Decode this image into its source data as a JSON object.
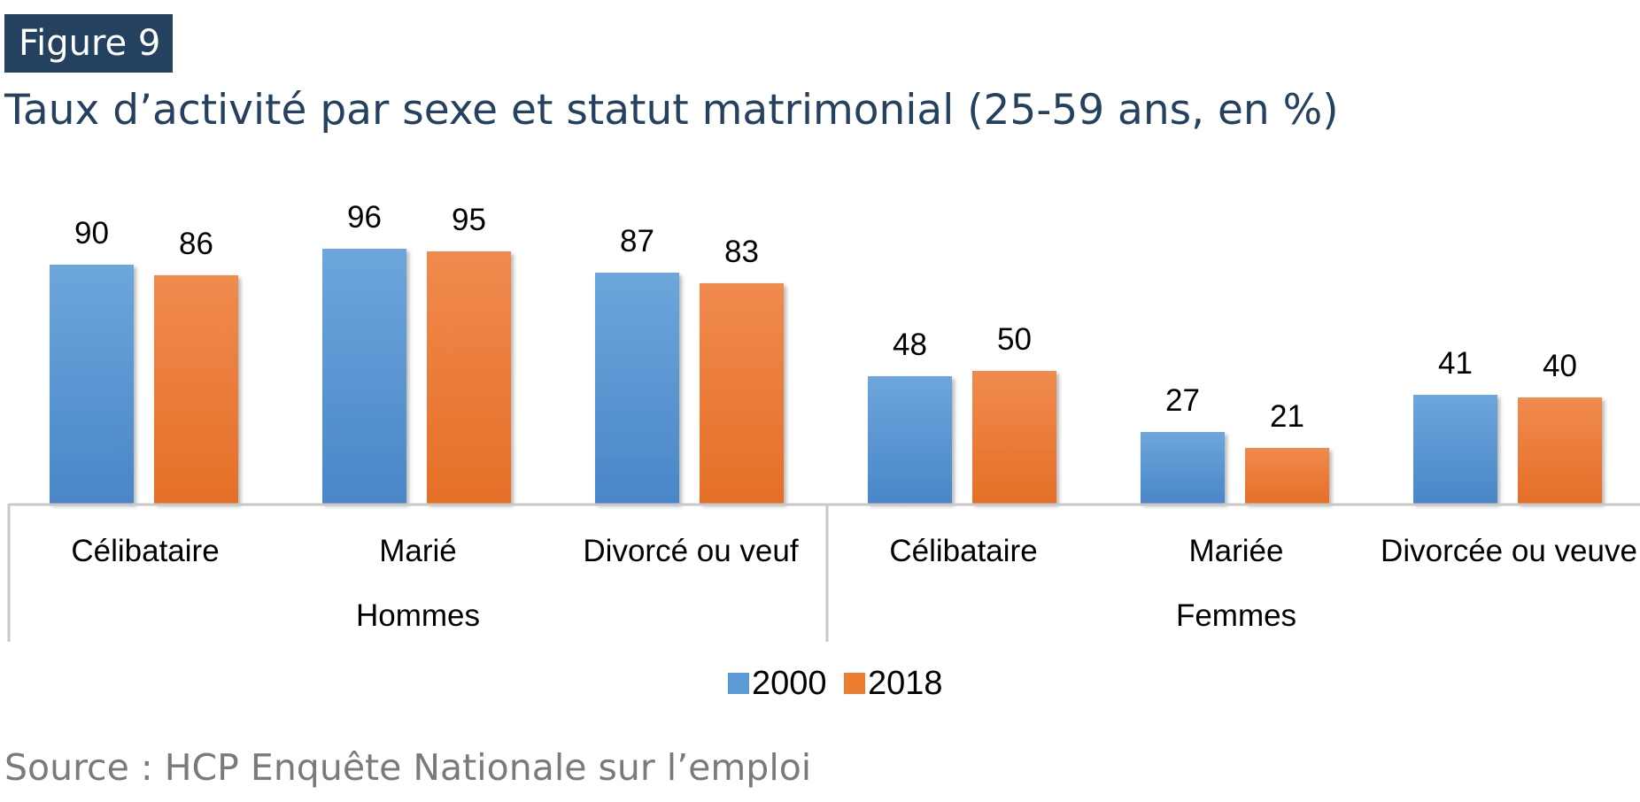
{
  "figure_label": "Figure 9",
  "title": "Taux d’activité par sexe et statut matrimonial (25-59 ans, en %)",
  "source": "Source : HCP Enquête Nationale sur l’emploi",
  "colors": {
    "badge_bg": "#24425f",
    "title": "#24425f",
    "series_2000": "#5b9bd5",
    "series_2018": "#ed7d31",
    "axis": "#c8c8c8",
    "source": "#7a7a7a"
  },
  "chart_data": {
    "type": "bar",
    "title": "Taux d’activité par sexe et statut matrimonial (25-59 ans, en %)",
    "xlabel": "",
    "ylabel": "",
    "ylim": [
      0,
      100
    ],
    "grid": false,
    "legend_position": "bottom",
    "categories": [
      "Célibataire",
      "Marié",
      "Divorcé ou veuf",
      "Célibataire",
      "Mariée",
      "Divorcée ou veuve"
    ],
    "groups": [
      {
        "label": "Hommes",
        "category_span": [
          0,
          2
        ]
      },
      {
        "label": "Femmes",
        "category_span": [
          3,
          5
        ]
      }
    ],
    "series": [
      {
        "name": "2000",
        "color": "#5b9bd5",
        "values": [
          90,
          96,
          87,
          48,
          27,
          41
        ]
      },
      {
        "name": "2018",
        "color": "#ed7d31",
        "values": [
          86,
          95,
          83,
          50,
          21,
          40
        ]
      }
    ]
  }
}
